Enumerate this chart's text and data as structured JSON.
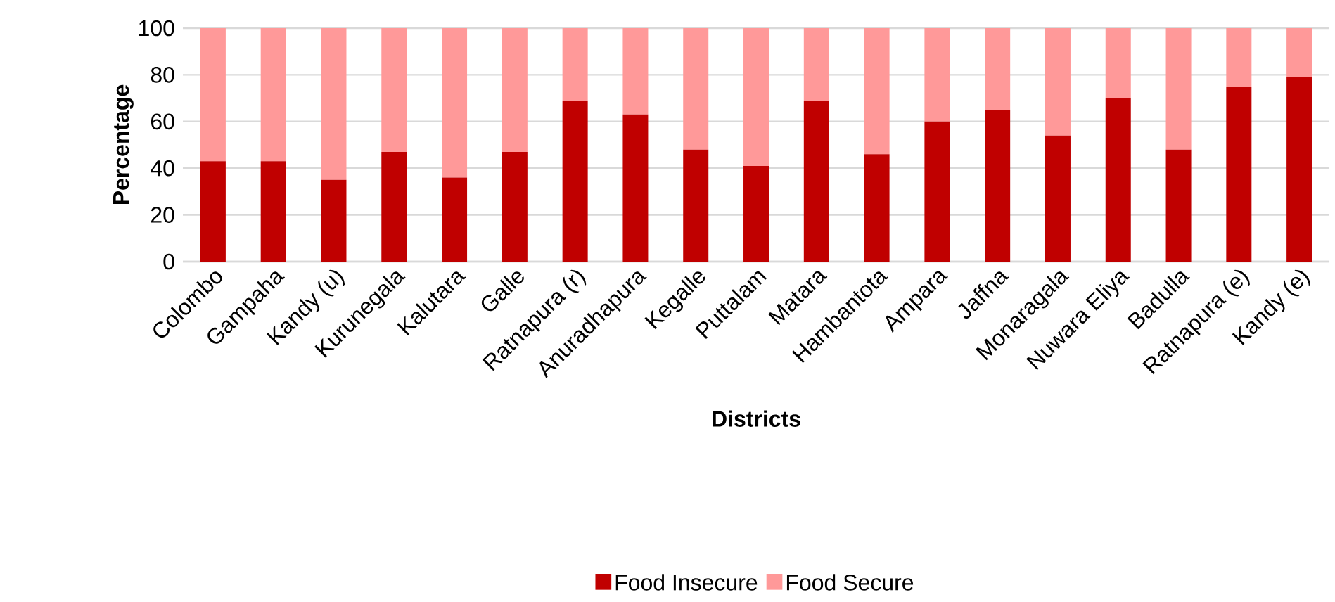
{
  "chart_data": {
    "type": "bar",
    "stacked": true,
    "xlabel": "Districts",
    "ylabel": "Percentage",
    "categories": [
      "Colombo",
      "Gampaha",
      "Kandy (u)",
      "Kurunegala",
      "Kalutara",
      "Galle",
      "Ratnapura  (r)",
      "Anuradhapura",
      "Kegalle",
      "Puttalam",
      "Matara",
      "Hambantota",
      "Ampara",
      "Jaffna",
      "Monaragala",
      "Nuwara Eliya",
      "Badulla",
      "Ratnapura (e)",
      "Kandy (e)"
    ],
    "series": [
      {
        "name": "Food Insecure",
        "color": "#c00000",
        "values": [
          43,
          43,
          35,
          47,
          36,
          47,
          69,
          63,
          48,
          41,
          69,
          46,
          60,
          65,
          54,
          70,
          48,
          75,
          79
        ]
      },
      {
        "name": "Food Secure",
        "color": "#ff9999",
        "values": [
          57,
          57,
          65,
          53,
          64,
          53,
          31,
          37,
          52,
          59,
          31,
          54,
          40,
          35,
          46,
          30,
          52,
          25,
          21
        ]
      }
    ],
    "ylim": [
      0,
      100
    ],
    "yticks": [
      0,
      20,
      40,
      60,
      80,
      100
    ],
    "grid": "y",
    "legend": "bottom"
  }
}
